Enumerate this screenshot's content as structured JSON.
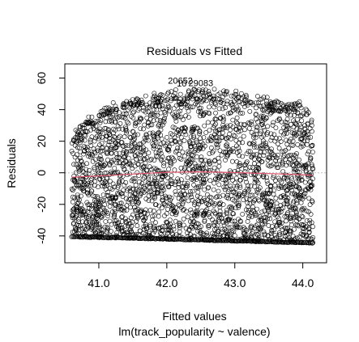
{
  "chart_data": {
    "type": "scatter",
    "title": "Residuals vs Fitted",
    "xlabel": "Fitted values",
    "subtitle": "lm(track_popularity ~ valence)",
    "ylabel": "Residuals",
    "xlim": [
      40.5,
      44.35
    ],
    "ylim": [
      -57,
      69
    ],
    "x_ticks": [
      41.0,
      42.0,
      43.0,
      44.0
    ],
    "x_tick_labels": [
      "41.0",
      "42.0",
      "43.0",
      "44.0"
    ],
    "y_ticks": [
      -40,
      -20,
      0,
      20,
      40,
      60
    ],
    "y_tick_labels": [
      "-40",
      "-20",
      "0",
      "20",
      "40",
      "60"
    ],
    "x_range_data": [
      40.6,
      44.15
    ],
    "residual_min_line": {
      "x": [
        40.6,
        44.15
      ],
      "y": [
        -40.7,
        -44.6
      ]
    },
    "residual_upper_envelope": {
      "x": [
        40.6,
        41.0,
        41.5,
        42.0,
        42.5,
        43.0,
        43.5,
        44.0,
        44.15
      ],
      "y": [
        24,
        40,
        47,
        50,
        53,
        50,
        46,
        43,
        38
      ]
    },
    "smoother": {
      "x": [
        40.6,
        41.0,
        41.5,
        42.0,
        42.5,
        43.0,
        43.5,
        44.0,
        44.15
      ],
      "y": [
        -2.8,
        -2.0,
        -0.8,
        0.3,
        0.6,
        0.1,
        -0.5,
        -1.2,
        -1.6
      ]
    },
    "zero_line": 0,
    "point_style": "open-circle",
    "annotations": [
      {
        "label": "20652",
        "x": 42.2,
        "y": 56.5
      },
      {
        "label": "29083",
        "x": 42.5,
        "y": 55.0
      },
      {
        "label": "10",
        "x": 42.22,
        "y": 54.7
      }
    ],
    "colors": {
      "points": "#000000",
      "smoother": "#DF536B",
      "zero_line": "#BEBEBE"
    }
  }
}
